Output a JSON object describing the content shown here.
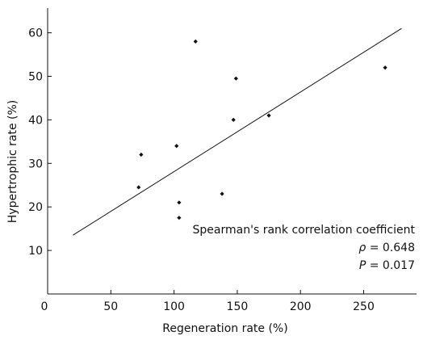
{
  "chart_data": {
    "type": "scatter",
    "xlabel": "Regeneration rate (%)",
    "ylabel": "Hypertrophic rate (%)",
    "xlim": [
      0,
      300
    ],
    "ylim": [
      0,
      65
    ],
    "x_ticks": [
      0,
      50,
      100,
      150,
      200,
      250
    ],
    "y_ticks": [
      10,
      20,
      30,
      40,
      50,
      60
    ],
    "grid": false,
    "points": [
      {
        "x": 72,
        "y": 24.5
      },
      {
        "x": 74,
        "y": 32
      },
      {
        "x": 102,
        "y": 34
      },
      {
        "x": 104,
        "y": 21
      },
      {
        "x": 104,
        "y": 17.5
      },
      {
        "x": 117,
        "y": 58
      },
      {
        "x": 138,
        "y": 23
      },
      {
        "x": 147,
        "y": 40
      },
      {
        "x": 149,
        "y": 49.5
      },
      {
        "x": 175,
        "y": 41
      },
      {
        "x": 267,
        "y": 52
      }
    ],
    "trendline": {
      "x1": 20,
      "y1": 13.5,
      "x2": 280,
      "y2": 61
    },
    "annotation": {
      "title": "Spearman's rank correlation coefficient",
      "rho_symbol": "ρ",
      "rho_value": "= 0.648",
      "p_symbol": "P",
      "p_value": "= 0.017"
    }
  }
}
